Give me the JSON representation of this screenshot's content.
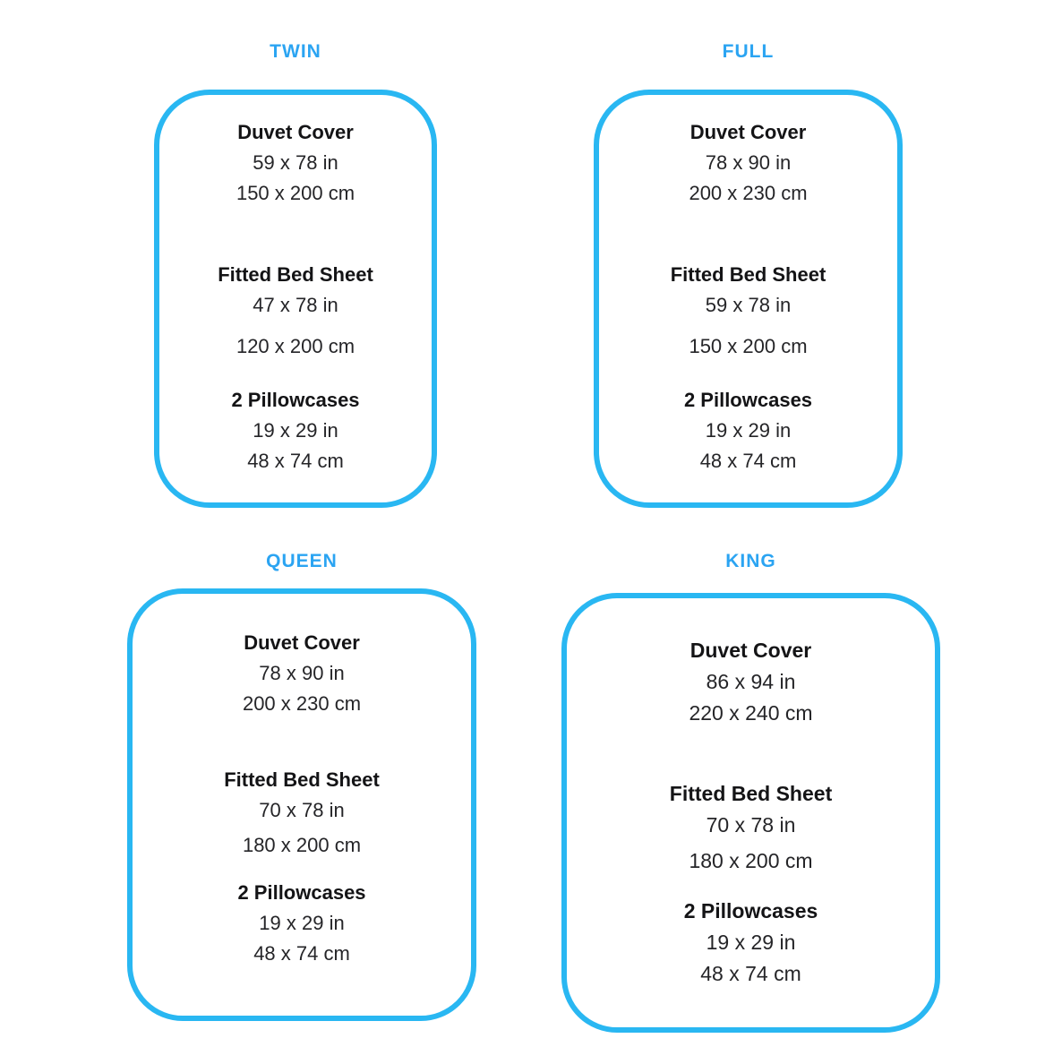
{
  "accent_colors": {
    "title_blue": "#2ba4f2",
    "border_blue": "#29b7f2",
    "text_dark": "#1d1d1f"
  },
  "sizes": [
    {
      "label": "TWIN",
      "items": [
        {
          "name": "Duvet Cover",
          "lines": [
            "59 x 78 in",
            "150 x 200 cm"
          ]
        },
        {
          "name": "Fitted Bed Sheet",
          "lines": [
            "47 x 78 in",
            "120 x 200 cm"
          ]
        },
        {
          "name": "2 Pillowcases",
          "lines": [
            "19 x 29 in",
            "48 x 74 cm"
          ]
        }
      ]
    },
    {
      "label": "FULL",
      "items": [
        {
          "name": "Duvet Cover",
          "lines": [
            "78 x 90 in",
            "200 x 230 cm"
          ]
        },
        {
          "name": "Fitted Bed Sheet",
          "lines": [
            "59 x 78 in",
            "150 x 200 cm"
          ]
        },
        {
          "name": "2 Pillowcases",
          "lines": [
            "19 x 29 in",
            "48 x 74 cm"
          ]
        }
      ]
    },
    {
      "label": "QUEEN",
      "items": [
        {
          "name": "Duvet Cover",
          "lines": [
            "78 x 90 in",
            "200 x 230 cm"
          ]
        },
        {
          "name": "Fitted Bed Sheet",
          "lines": [
            "70 x 78 in",
            "180 x 200 cm"
          ]
        },
        {
          "name": "2 Pillowcases",
          "lines": [
            "19 x 29 in",
            "48 x 74 cm"
          ]
        }
      ]
    },
    {
      "label": "KING",
      "items": [
        {
          "name": "Duvet Cover",
          "lines": [
            "86 x 94 in",
            "220 x 240 cm"
          ]
        },
        {
          "name": "Fitted Bed Sheet",
          "lines": [
            "70 x 78 in",
            "180 x 200 cm"
          ]
        },
        {
          "name": "2 Pillowcases",
          "lines": [
            "19 x 29 in",
            "48 x 74 cm"
          ]
        }
      ]
    }
  ]
}
